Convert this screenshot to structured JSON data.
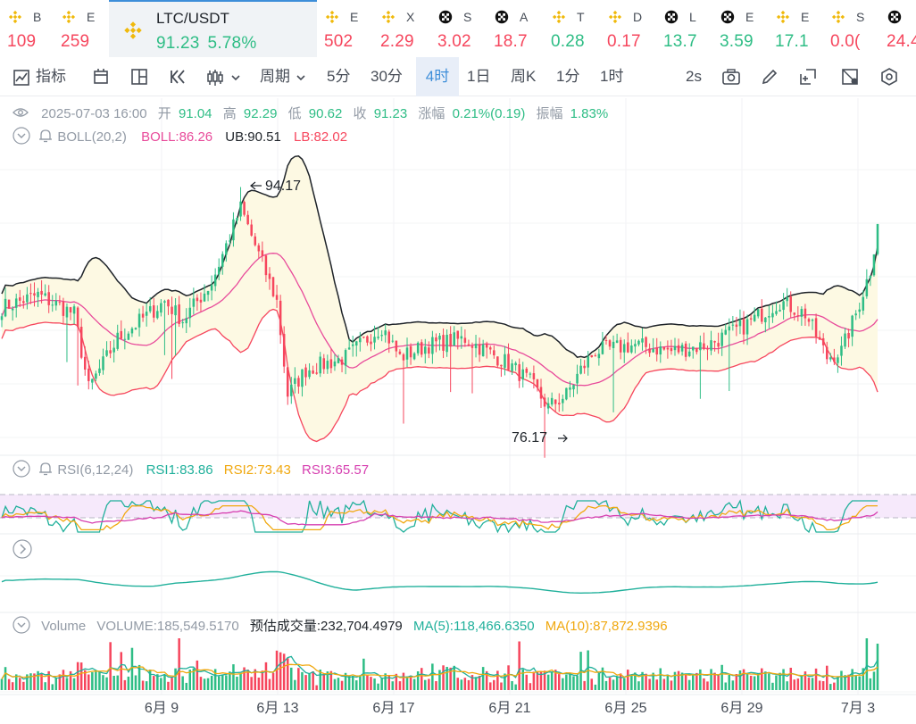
{
  "tickers": [
    {
      "symbol": "B",
      "price": "109",
      "dir": "down",
      "icon": "bnb-icon"
    },
    {
      "symbol": "E",
      "price": "259",
      "dir": "down",
      "icon": "bnb-icon"
    },
    {
      "symbol": "LTC/USDT",
      "price": "91.23",
      "change": "5.78%",
      "dir": "up",
      "icon": "bnb-icon",
      "active": true
    },
    {
      "symbol": "E",
      "price": "502",
      "dir": "down",
      "icon": "bnb-icon"
    },
    {
      "symbol": "X",
      "price": "2.29",
      "dir": "down",
      "icon": "bnb-icon"
    },
    {
      "symbol": "S",
      "price": "3.02",
      "dir": "down",
      "icon": "checker-icon"
    },
    {
      "symbol": "A",
      "price": "18.7",
      "dir": "down",
      "icon": "checker-icon"
    },
    {
      "symbol": "T",
      "price": "0.28",
      "dir": "up",
      "icon": "bnb-icon"
    },
    {
      "symbol": "D",
      "price": "0.17",
      "dir": "down",
      "icon": "bnb-icon"
    },
    {
      "symbol": "L",
      "price": "13.7",
      "dir": "up",
      "icon": "checker-icon"
    },
    {
      "symbol": "E",
      "price": "3.59",
      "dir": "up",
      "icon": "checker-icon"
    },
    {
      "symbol": "E",
      "price": "17.1",
      "dir": "up",
      "icon": "bnb-icon"
    },
    {
      "symbol": "S",
      "price": "0.0(",
      "dir": "down",
      "icon": "bnb-icon"
    },
    {
      "symbol": "",
      "price": "24.4",
      "dir": "down",
      "icon": "checker-icon"
    }
  ],
  "toolbar": {
    "indicators": "指标",
    "period": "周期",
    "intervals": [
      "5分",
      "30分",
      "4时",
      "1日",
      "周K",
      "1分",
      "1时"
    ],
    "selected_interval": "4时",
    "refresh": "2s"
  },
  "ohlc": {
    "datetime": "2025-07-03 16:00",
    "open_label": "开",
    "open": "91.04",
    "high_label": "高",
    "high": "92.29",
    "low_label": "低",
    "low": "90.62",
    "close_label": "收",
    "close": "91.23",
    "change_label": "涨幅",
    "change": "0.21%(0.19)",
    "amplitude_label": "振幅",
    "amplitude": "1.83%"
  },
  "boll": {
    "label": "BOLL(20,2)",
    "boll": "BOLL:86.26",
    "ub": "UB:90.51",
    "lb": "LB:82.02"
  },
  "price_marks": {
    "high": "94.17",
    "low": "76.17"
  },
  "rsi": {
    "label": "RSI(6,12,24)",
    "rsi1": "RSI1:83.86",
    "rsi2": "RSI2:73.43",
    "rsi3": "RSI3:65.57"
  },
  "volume": {
    "label": "Volume",
    "volume": "VOLUME:185,549.5170",
    "estimate": "预估成交量:232,704.4979",
    "ma5": "MA(5):118,466.6350",
    "ma10": "MA(10):87,872.9396"
  },
  "x_axis": [
    "6月 9",
    "6月 13",
    "6月 17",
    "6月 21",
    "6月 25",
    "6月 29",
    "7月 3"
  ],
  "colors": {
    "up": "#2ebd85",
    "down": "#f6465d",
    "accent": "#3d8ed9",
    "boll_band": "#fdf9e3",
    "boll_mid": "#e84a9a",
    "ub": "#1e2329",
    "lb": "#f6465d",
    "rsi1": "#20b09b",
    "rsi2": "#f0a80f",
    "rsi3": "#d63fb0"
  },
  "chart_data": {
    "type": "candlestick",
    "timeframe": "4h",
    "y_range": [
      73,
      97
    ],
    "close_anchors": [
      {
        "i": 0,
        "v": 84.5
      },
      {
        "i": 10,
        "v": 85.5
      },
      {
        "i": 20,
        "v": 84.0
      },
      {
        "i": 24,
        "v": 78.0
      },
      {
        "i": 32,
        "v": 82.0
      },
      {
        "i": 45,
        "v": 85.0
      },
      {
        "i": 50,
        "v": 83.5
      },
      {
        "i": 58,
        "v": 86.5
      },
      {
        "i": 66,
        "v": 92.5
      },
      {
        "i": 72,
        "v": 88.0
      },
      {
        "i": 76,
        "v": 85.0
      },
      {
        "i": 79,
        "v": 77.5
      },
      {
        "i": 84,
        "v": 79.5
      },
      {
        "i": 95,
        "v": 80.5
      },
      {
        "i": 105,
        "v": 83.0
      },
      {
        "i": 110,
        "v": 80.5
      },
      {
        "i": 118,
        "v": 81.5
      },
      {
        "i": 128,
        "v": 82.0
      },
      {
        "i": 140,
        "v": 80.0
      },
      {
        "i": 146,
        "v": 78.5
      },
      {
        "i": 151,
        "v": 76.5
      },
      {
        "i": 156,
        "v": 77.5
      },
      {
        "i": 160,
        "v": 79.5
      },
      {
        "i": 164,
        "v": 81.0
      },
      {
        "i": 175,
        "v": 81.5
      },
      {
        "i": 185,
        "v": 81.0
      },
      {
        "i": 195,
        "v": 81.5
      },
      {
        "i": 205,
        "v": 83.0
      },
      {
        "i": 215,
        "v": 85.0
      },
      {
        "i": 222,
        "v": 84.0
      },
      {
        "i": 228,
        "v": 80.5
      },
      {
        "i": 232,
        "v": 81.0
      },
      {
        "i": 236,
        "v": 84.0
      },
      {
        "i": 240,
        "v": 87.5
      },
      {
        "i": 242,
        "v": 91.2
      }
    ],
    "high_point": {
      "i": 66,
      "v": 94.17
    },
    "low_point": {
      "i": 155,
      "v": 76.17
    }
  }
}
